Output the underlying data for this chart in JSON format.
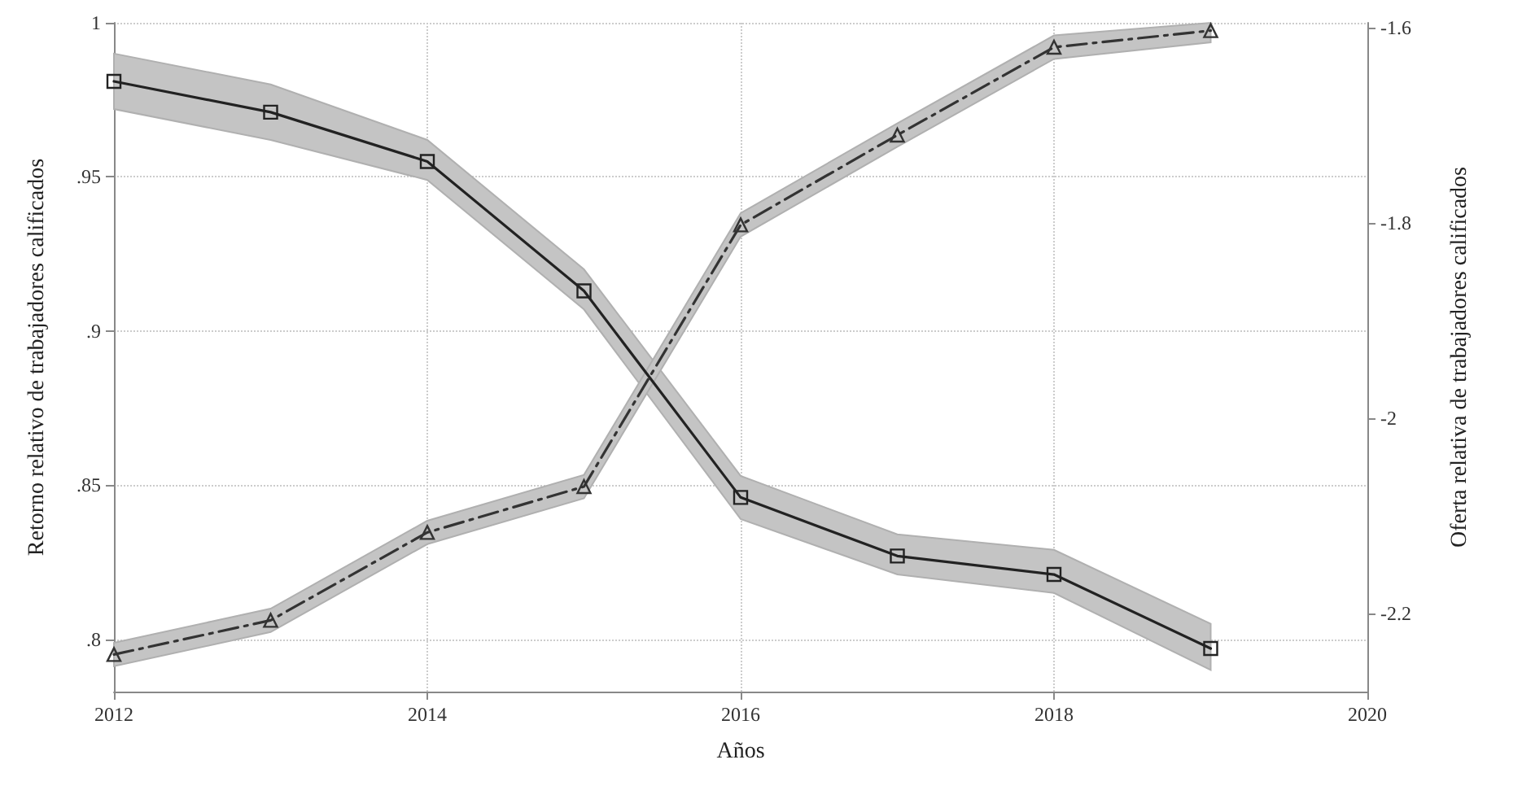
{
  "chart_data": {
    "type": "line",
    "xlabel": "Años",
    "ylabel": "Retorno relativo de trabajadores calificados",
    "y2label": "Oferta relativa de trabajadores calificados",
    "x": [
      2012,
      2013,
      2014,
      2015,
      2016,
      2017,
      2018,
      2019
    ],
    "series": [
      {
        "color": "#222222",
        "marker": "square",
        "line_style": "solid",
        "values": [
          0.981,
          0.971,
          0.955,
          0.913,
          0.846,
          0.827,
          0.821,
          0.797
        ],
        "lower": [
          0.972,
          0.962,
          0.949,
          0.907,
          0.839,
          0.821,
          0.815,
          0.79
        ],
        "upper": [
          0.99,
          0.98,
          0.962,
          0.92,
          0.853,
          0.834,
          0.829,
          0.805
        ]
      },
      {
        "color": "#333333",
        "marker": "triangle",
        "line_style": "dashed",
        "axis": "y2",
        "values": [
          -2.242,
          -2.207,
          -2.117,
          -2.07,
          -1.802,
          -1.71,
          -1.62,
          -1.603
        ],
        "lower": [
          -2.254,
          -2.219,
          -2.129,
          -2.082,
          -1.814,
          -1.722,
          -1.632,
          -1.615
        ],
        "upper": [
          -2.23,
          -2.195,
          -2.105,
          -2.058,
          -1.79,
          -1.698,
          -1.608,
          -1.595
        ]
      }
    ],
    "xlim": [
      2012,
      2020
    ],
    "xticks": [
      2012,
      2014,
      2016,
      2018,
      2020
    ],
    "ylim": [
      0.783,
      1.0
    ],
    "yticks": [
      {
        "value": 0.8,
        "label": ".8"
      },
      {
        "value": 0.85,
        "label": ".85"
      },
      {
        "value": 0.9,
        "label": ".9"
      },
      {
        "value": 0.95,
        "label": ".95"
      },
      {
        "value": 1,
        "label": "1"
      }
    ],
    "y2lim": [
      -2.28,
      -1.595
    ],
    "y2ticks": [
      -2.2,
      -2,
      -1.8,
      -1.6
    ],
    "grid": true
  }
}
